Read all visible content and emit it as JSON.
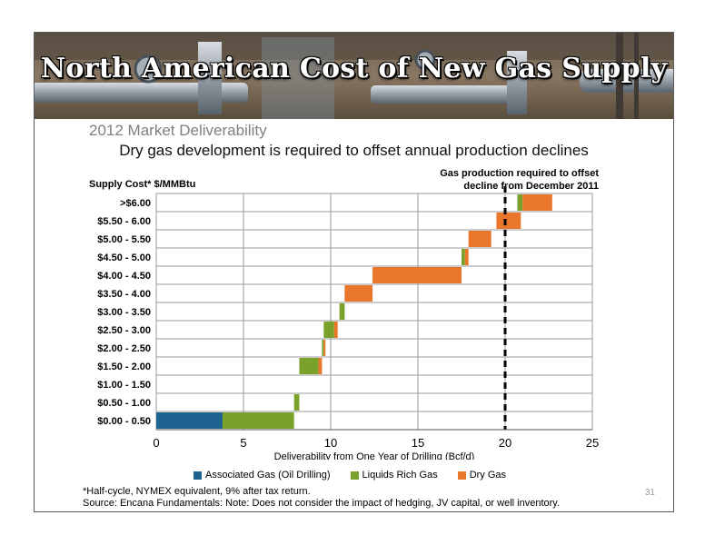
{
  "header": {
    "title": "North American Cost of New Gas Supply",
    "subtitle": "2012 Market Deliverability",
    "headline": "Dry gas development is required to offset annual production declines"
  },
  "annotation": {
    "line1": "Gas production required to offset",
    "line2": "decline from December 2011",
    "x_value": 20
  },
  "footer": {
    "note1": "*Half-cycle, NYMEX equivalent, 9% after tax return.",
    "note2": "Source: Encana Fundamentals: Note: Does not consider the impact of hedging, JV capital, or well inventory.",
    "page": "31"
  },
  "colors": {
    "associated": "#1f6390",
    "liquids": "#7aa22a",
    "dry": "#e8772b",
    "grid": "#9a9a9a"
  },
  "chart_data": {
    "type": "bar",
    "orientation": "horizontal-stacked-waterfall",
    "ylabel": "Supply Cost* $/MMBtu",
    "xlabel": "Deliverability from One Year of Drilling (Bcf/d)",
    "xlim": [
      0,
      25
    ],
    "xticks": [
      "0",
      "5",
      "10",
      "15",
      "20",
      "25"
    ],
    "xtick_values": [
      0,
      5,
      10,
      15,
      20,
      25
    ],
    "categories": [
      ">$6.00",
      "$5.50 - 6.00",
      "$5.00 - 5.50",
      "$4.50 - 5.00",
      "$4.00 - 4.50",
      "$3.50 - 4.00",
      "$3.00 - 3.50",
      "$2.50 - 3.00",
      "$2.00 - 2.50",
      "$1.50 - 2.00",
      "$1.00 - 1.50",
      "$0.50 - 1.00",
      "$0.00 - 0.50"
    ],
    "series": [
      {
        "name": "Associated Gas (Oil Drilling)",
        "color": "#1f6390",
        "segments": [
          {
            "category": "$0.00 - 0.50",
            "start": 0.0,
            "end": 3.8
          }
        ]
      },
      {
        "name": "Liquids Rich Gas",
        "color": "#7aa22a",
        "segments": [
          {
            "category": "$0.00 - 0.50",
            "start": 3.8,
            "end": 7.9
          },
          {
            "category": "$0.50 - 1.00",
            "start": 7.9,
            "end": 8.2
          },
          {
            "category": "$1.50 - 2.00",
            "start": 8.2,
            "end": 9.3
          },
          {
            "category": "$2.00 - 2.50",
            "start": 9.5,
            "end": 9.6
          },
          {
            "category": "$2.50 - 3.00",
            "start": 9.6,
            "end": 10.2
          },
          {
            "category": "$3.00 - 3.50",
            "start": 10.5,
            "end": 10.8
          },
          {
            "category": "$4.50 - 5.00",
            "start": 17.5,
            "end": 17.7
          },
          {
            "category": ">$6.00",
            "start": 20.7,
            "end": 21.0
          }
        ]
      },
      {
        "name": "Dry Gas",
        "color": "#e8772b",
        "segments": [
          {
            "category": "$1.50 - 2.00",
            "start": 9.3,
            "end": 9.5
          },
          {
            "category": "$2.00 - 2.50",
            "start": 9.6,
            "end": 9.7
          },
          {
            "category": "$2.50 - 3.00",
            "start": 10.2,
            "end": 10.4
          },
          {
            "category": "$3.50 - 4.00",
            "start": 10.8,
            "end": 12.4
          },
          {
            "category": "$4.00 - 4.50",
            "start": 12.4,
            "end": 17.5
          },
          {
            "category": "$4.50 - 5.00",
            "start": 17.7,
            "end": 17.9
          },
          {
            "category": "$5.00 - 5.50",
            "start": 17.9,
            "end": 19.2
          },
          {
            "category": "$5.50 - 6.00",
            "start": 19.5,
            "end": 20.9
          },
          {
            "category": ">$6.00",
            "start": 21.0,
            "end": 22.7
          }
        ]
      }
    ],
    "grid": true,
    "legend_position": "bottom"
  }
}
